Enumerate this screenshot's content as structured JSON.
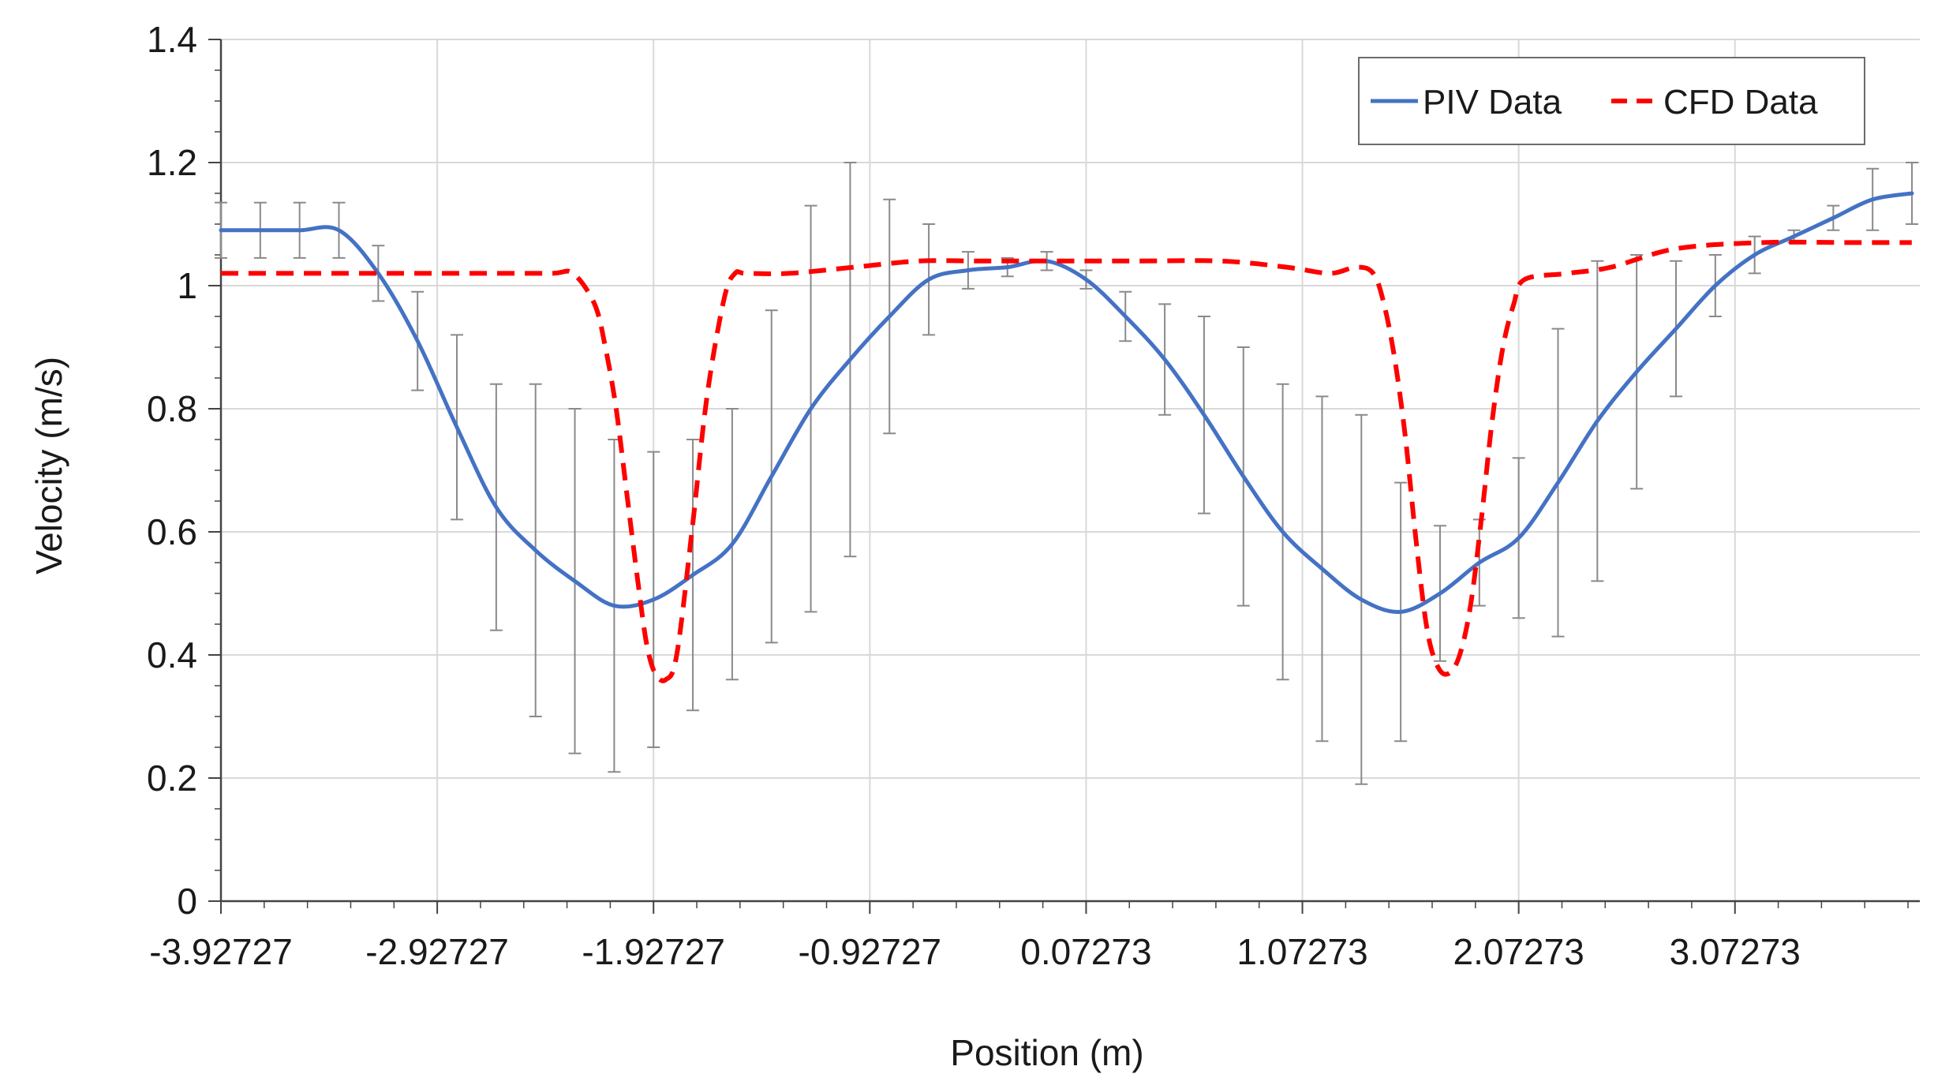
{
  "chart_data": {
    "type": "line",
    "title": "",
    "xlabel": "Position (m)",
    "ylabel": "Velocity (m/s)",
    "xlim": [
      -3.92727,
      3.92727
    ],
    "ylim": [
      0,
      1.4
    ],
    "grid": true,
    "legend_position": "top-right",
    "x_ticks": [
      -3.92727,
      -2.92727,
      -1.92727,
      -0.92727,
      0.07273,
      1.07273,
      2.07273,
      3.07273
    ],
    "x_tick_labels": [
      "-3.92727",
      "-2.92727",
      "-1.92727",
      "-0.92727",
      "0.07273",
      "1.07273",
      "2.07273",
      "3.07273"
    ],
    "y_ticks": [
      0,
      0.2,
      0.4,
      0.6,
      0.8,
      1.0,
      1.2,
      1.4
    ],
    "y_tick_labels": [
      "0",
      "0.2",
      "0.4",
      "0.6",
      "0.8",
      "1",
      "1.2",
      "1.4"
    ],
    "series": [
      {
        "name": "PIV Data",
        "style": "solid",
        "color": "#4472C4",
        "x": [
          -3.92727,
          -3.74545,
          -3.56364,
          -3.38182,
          -3.2,
          -3.01818,
          -2.83636,
          -2.65455,
          -2.47273,
          -2.29091,
          -2.10909,
          -1.92727,
          -1.74545,
          -1.56364,
          -1.38182,
          -1.2,
          -1.01818,
          -0.83636,
          -0.65455,
          -0.47273,
          -0.29091,
          -0.10909,
          0.07273,
          0.25455,
          0.43636,
          0.61818,
          0.8,
          0.98182,
          1.16364,
          1.34545,
          1.52727,
          1.70909,
          1.89091,
          2.07273,
          2.25455,
          2.43636,
          2.61818,
          2.8,
          2.98182,
          3.16364,
          3.34545,
          3.52727,
          3.70909,
          3.89091
        ],
        "y": [
          1.09,
          1.09,
          1.09,
          1.09,
          1.02,
          0.91,
          0.77,
          0.64,
          0.57,
          0.52,
          0.48,
          0.49,
          0.53,
          0.58,
          0.69,
          0.8,
          0.88,
          0.95,
          1.01,
          1.025,
          1.03,
          1.04,
          1.01,
          0.95,
          0.88,
          0.79,
          0.69,
          0.6,
          0.54,
          0.49,
          0.47,
          0.5,
          0.55,
          0.59,
          0.68,
          0.78,
          0.86,
          0.93,
          1.0,
          1.05,
          1.08,
          1.11,
          1.14,
          1.15
        ],
        "error": [
          0.045,
          0.045,
          0.045,
          0.045,
          0.045,
          0.08,
          0.15,
          0.2,
          0.27,
          0.28,
          0.27,
          0.24,
          0.22,
          0.22,
          0.27,
          0.33,
          0.32,
          0.19,
          0.09,
          0.03,
          0.015,
          0.015,
          0.015,
          0.04,
          0.09,
          0.16,
          0.21,
          0.24,
          0.28,
          0.3,
          0.21,
          0.11,
          0.07,
          0.13,
          0.25,
          0.26,
          0.19,
          0.11,
          0.05,
          0.03,
          0.01,
          0.02,
          0.05,
          0.05
        ]
      },
      {
        "name": "CFD Data",
        "style": "dashed",
        "color": "#FF0000",
        "x": [
          -3.92727,
          -3.6,
          -3.3,
          -3.0,
          -2.7,
          -2.4,
          -2.3,
          -2.2,
          -2.15,
          -2.1,
          -2.05,
          -2.0,
          -1.96,
          -1.92,
          -1.87,
          -1.82,
          -1.75,
          -1.68,
          -1.6,
          -1.55,
          -1.5,
          -1.3,
          -1.0,
          -0.7,
          -0.4,
          0.0,
          0.3,
          0.7,
          1.0,
          1.2,
          1.32,
          1.4,
          1.45,
          1.5,
          1.55,
          1.6,
          1.65,
          1.7,
          1.75,
          1.8,
          1.85,
          1.9,
          1.95,
          2.0,
          2.05,
          2.1,
          2.3,
          2.5,
          2.8,
          3.2,
          3.6,
          3.89
        ],
        "y": [
          1.02,
          1.02,
          1.02,
          1.02,
          1.02,
          1.02,
          1.02,
          0.97,
          0.9,
          0.8,
          0.66,
          0.52,
          0.42,
          0.37,
          0.36,
          0.4,
          0.6,
          0.82,
          0.98,
          1.02,
          1.02,
          1.02,
          1.03,
          1.04,
          1.04,
          1.04,
          1.04,
          1.04,
          1.03,
          1.02,
          1.03,
          1.02,
          0.97,
          0.88,
          0.75,
          0.58,
          0.44,
          0.38,
          0.37,
          0.4,
          0.48,
          0.62,
          0.78,
          0.9,
          0.97,
          1.01,
          1.02,
          1.03,
          1.06,
          1.07,
          1.07,
          1.07
        ]
      }
    ]
  }
}
